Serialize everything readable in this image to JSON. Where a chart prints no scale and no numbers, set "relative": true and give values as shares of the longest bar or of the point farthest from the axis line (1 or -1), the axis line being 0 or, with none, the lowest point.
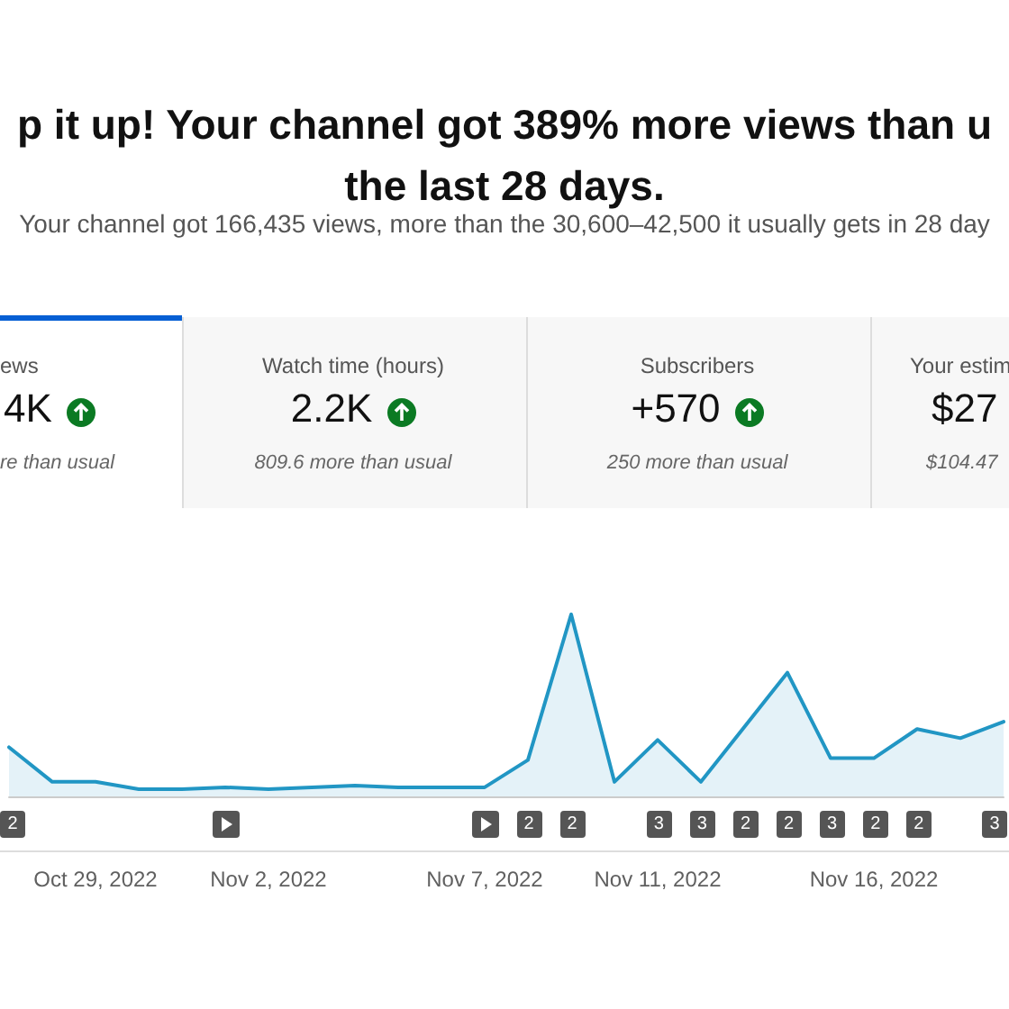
{
  "chart_data": {
    "type": "area",
    "title": "p it up! Your channel got 389% more views than u\nthe last 28 days.",
    "subtitle": "Your channel got 166,435 views, more than the 30,600–42,500 it usually gets in 28 day",
    "annotations": [
      "ews",
      "4K",
      "re than usual",
      "Watch time (hours)",
      "2.2K",
      "809.6 more than usual",
      "Subscribers",
      "+570",
      "250 more than usual",
      "Your estim",
      "$27",
      "$104.47",
      "2",
      "2",
      "2",
      "3",
      "3",
      "2",
      "2",
      "3",
      "2",
      "2",
      "3"
    ],
    "categories": [
      null,
      null,
      "Oct 29, 2022",
      null,
      null,
      null,
      "Nov 2, 2022",
      null,
      null,
      null,
      null,
      "Nov 7, 2022",
      null,
      null,
      null,
      "Nov 11, 2022",
      null,
      null,
      null,
      null,
      "Nov 16, 2022",
      null,
      null,
      null
    ],
    "series": [
      {
        "color": "#2196c4",
        "values": [
          0.27,
          0.08,
          0.08,
          0.04,
          0.04,
          0.05,
          0.04,
          0.05,
          0.06,
          0.05,
          0.05,
          0.05,
          0.2,
          1,
          0.08,
          0.31,
          0.08,
          0.38,
          0.68,
          0.21,
          0.21,
          0.37,
          0.32,
          0.41
        ]
      }
    ],
    "relative": true,
    "marker": "none",
    "line_style": "solid"
  }
}
